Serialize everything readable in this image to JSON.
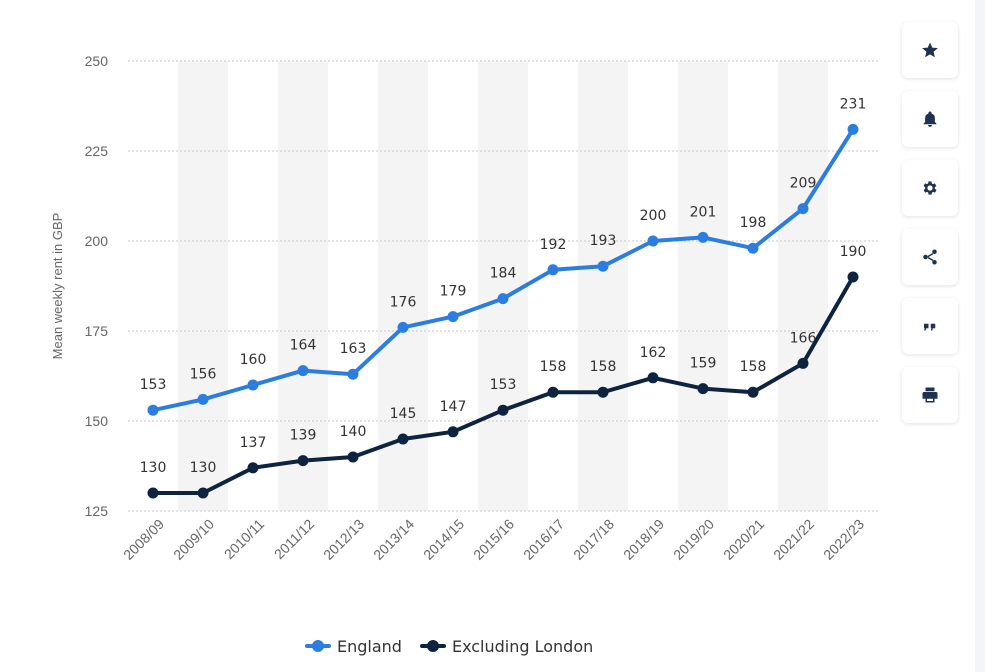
{
  "chart_data": {
    "type": "line",
    "ylabel": "Mean weekly rent in GBP",
    "ylim": [
      125,
      250
    ],
    "yticks": [
      125,
      150,
      175,
      200,
      225,
      250
    ],
    "categories": [
      "2008/09",
      "2009/10",
      "2010/11",
      "2011/12",
      "2012/13",
      "2013/14",
      "2014/15",
      "2015/16",
      "2016/17",
      "2017/18",
      "2018/19",
      "2019/20",
      "2020/21",
      "2021/22",
      "2022/23"
    ],
    "series": [
      {
        "name": "England",
        "color": "#2b7de0",
        "values": [
          153,
          156,
          160,
          164,
          163,
          176,
          179,
          184,
          192,
          193,
          200,
          201,
          198,
          209,
          231
        ]
      },
      {
        "name": "Excluding London",
        "color": "#0e2340",
        "values": [
          130,
          130,
          137,
          139,
          140,
          145,
          147,
          153,
          158,
          158,
          162,
          159,
          158,
          166,
          190
        ]
      }
    ],
    "legend": "bottom-center"
  },
  "legend": {
    "england": "England",
    "excluding_london": "Excluding London"
  },
  "sidebar": {
    "items": [
      "star-icon",
      "bell-icon",
      "gear-icon",
      "share-icon",
      "quote-icon",
      "print-icon"
    ]
  }
}
